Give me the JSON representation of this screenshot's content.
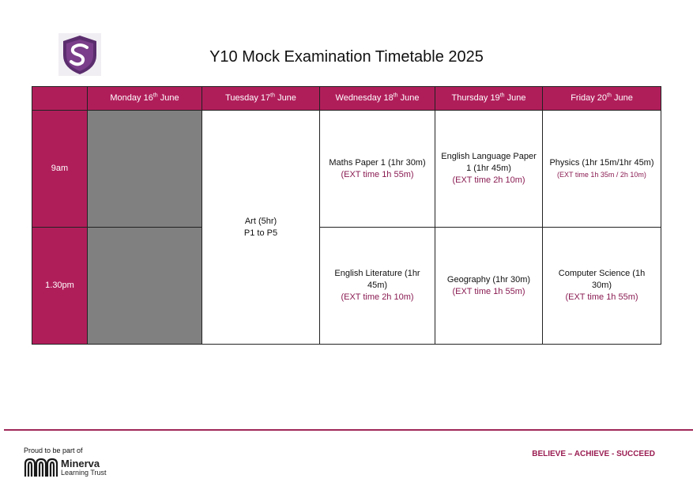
{
  "title": "Y10 Mock Examination Timetable 2025",
  "colors": {
    "accent": "#b01e5a",
    "blocked": "#808080",
    "ext_text": "#8a1c52"
  },
  "school_logo": {
    "icon": "school-crest-s-icon"
  },
  "days": [
    {
      "name": "Monday 16",
      "suffix": "th",
      "month": "June"
    },
    {
      "name": "Tuesday 17",
      "suffix": "th",
      "month": "June"
    },
    {
      "name": "Wednesday 18",
      "suffix": "th",
      "month": "June"
    },
    {
      "name": "Thursday 19",
      "suffix": "th",
      "month": "June"
    },
    {
      "name": "Friday 20",
      "suffix": "th",
      "month": "June"
    }
  ],
  "sessions": [
    "9am",
    "1.30pm"
  ],
  "exams": {
    "tue": {
      "line1": "Art (5hr)",
      "line2": "P1 to P5"
    },
    "wed_am": {
      "subject": "Maths Paper 1 (1hr 30m)",
      "ext": "(EXT time 1h 55m)"
    },
    "thu_am": {
      "subject": "English Language Paper 1 (1hr 45m)",
      "ext": "(EXT time 2h 10m)"
    },
    "fri_am": {
      "subject": "Physics (1hr 15m/1hr 45m)",
      "ext": "(EXT time 1h 35m / 2h 10m)"
    },
    "wed_pm": {
      "subject": "English Literature (1hr 45m)",
      "ext": "(EXT time 2h 10m)"
    },
    "thu_pm": {
      "subject": "Geography (1hr 30m)",
      "ext": "(EXT time 1h 55m)"
    },
    "fri_pm": {
      "subject": "Computer Science (1h 30m)",
      "ext": "(EXT time 1h 55m)"
    }
  },
  "footer": {
    "proud": "Proud to be part of",
    "trust_name": "Minerva",
    "trust_sub": "Learning Trust",
    "motto": "BELIEVE – ACHIEVE - SUCCEED"
  }
}
